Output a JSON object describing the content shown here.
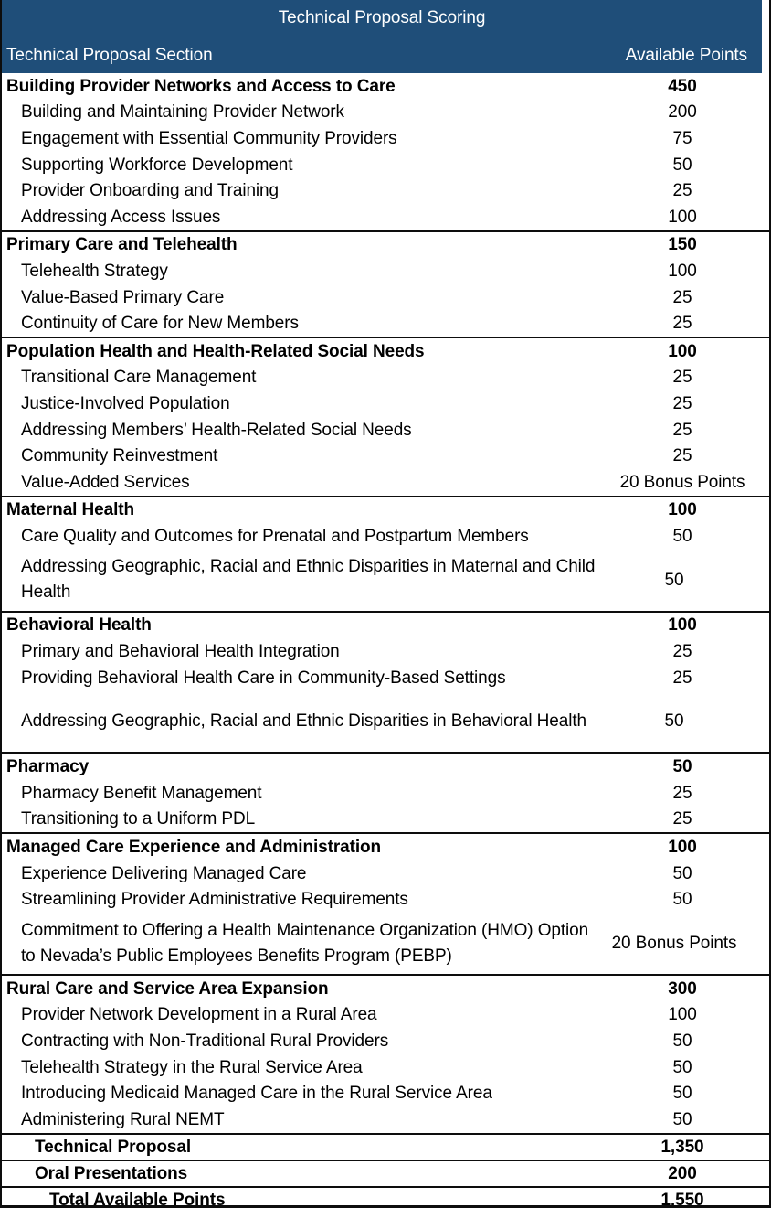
{
  "title": "Technical Proposal Scoring",
  "columns": {
    "section": "Technical Proposal Section",
    "points": "Available Points"
  },
  "sections": [
    {
      "name": "Building Provider Networks and Access to Care",
      "points": "450",
      "items": [
        {
          "label": "Building and Maintaining Provider Network",
          "points": "200"
        },
        {
          "label": "Engagement with Essential Community Providers",
          "points": "75"
        },
        {
          "label": "Supporting Workforce Development",
          "points": "50"
        },
        {
          "label": "Provider Onboarding and Training",
          "points": "25"
        },
        {
          "label": "Addressing Access Issues",
          "points": "100"
        }
      ]
    },
    {
      "name": "Primary Care and Telehealth",
      "points": "150",
      "items": [
        {
          "label": "Telehealth Strategy",
          "points": "100"
        },
        {
          "label": "Value-Based Primary Care",
          "points": "25"
        },
        {
          "label": "Continuity of Care for New Members",
          "points": "25"
        }
      ]
    },
    {
      "name": "Population Health and Health-Related Social Needs",
      "points": "100",
      "items": [
        {
          "label": "Transitional Care Management",
          "points": "25"
        },
        {
          "label": "Justice-Involved Population",
          "points": "25"
        },
        {
          "label": "Addressing Members’ Health-Related Social Needs",
          "points": "25"
        },
        {
          "label": "Community Reinvestment",
          "points": "25"
        },
        {
          "label": "Value-Added Services",
          "points": "20 Bonus Points"
        }
      ]
    },
    {
      "name": "Maternal Health",
      "points": "100",
      "items": [
        {
          "label": "Care Quality and Outcomes for Prenatal and Postpartum Members",
          "points": "50"
        },
        {
          "label": "Addressing Geographic, Racial and Ethnic Disparities in Maternal and Child Health",
          "points": "50",
          "multiline": true
        }
      ]
    },
    {
      "name": "Behavioral Health",
      "points": "100",
      "items": [
        {
          "label": "Primary and Behavioral Health Integration",
          "points": "25"
        },
        {
          "label": "Providing Behavioral Health Care in Community-Based Settings",
          "points": "25"
        },
        {
          "label": "Addressing Geographic, Racial and Ethnic Disparities in Behavioral Health",
          "points": "50",
          "multiline": true
        }
      ]
    },
    {
      "name": "Pharmacy",
      "points": "50",
      "items": [
        {
          "label": "Pharmacy Benefit Management",
          "points": "25"
        },
        {
          "label": "Transitioning to a Uniform PDL",
          "points": "25"
        }
      ]
    },
    {
      "name": "Managed Care Experience and Administration",
      "points": "100",
      "items": [
        {
          "label": "Experience Delivering Managed Care",
          "points": "50"
        },
        {
          "label": "Streamlining Provider Administrative Requirements",
          "points": "50"
        },
        {
          "label": "Commitment to Offering a Health Maintenance Organization (HMO) Option to Nevada’s Public Employees Benefits Program (PEBP)",
          "points": "20 Bonus Points",
          "multiline": true
        }
      ]
    },
    {
      "name": "Rural Care and Service Area Expansion",
      "points": "300",
      "items": [
        {
          "label": "Provider Network Development in a Rural Area",
          "points": "100"
        },
        {
          "label": "Contracting with Non-Traditional Rural Providers",
          "points": "50"
        },
        {
          "label": "Telehealth Strategy in the Rural Service Area",
          "points": "50"
        },
        {
          "label": "Introducing Medicaid Managed Care in the Rural Service Area",
          "points": "50"
        },
        {
          "label": "Administering Rural NEMT",
          "points": "50"
        }
      ]
    }
  ],
  "totals": [
    {
      "label": "Technical Proposal",
      "points": "1,350",
      "indent": 1
    },
    {
      "label": "Oral Presentations",
      "points": "200",
      "indent": 1
    },
    {
      "label": "Total Available Points",
      "points": "1,550",
      "indent": 2
    }
  ],
  "colors": {
    "header_bg": "#1F4E79",
    "header_text": "#FFFFFF",
    "body_text": "#000000",
    "border": "#0D0D0D"
  }
}
